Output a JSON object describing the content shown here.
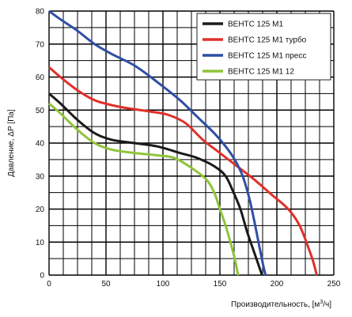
{
  "chart_data": {
    "type": "line",
    "xlabel_base": "Производительность, [м",
    "xlabel_sup": "3",
    "xlabel_end": "/ч]",
    "ylabel": "Давление, ΔР [Па]",
    "xlim": [
      0,
      250
    ],
    "ylim": [
      0,
      80
    ],
    "x_major_ticks": [
      0,
      50,
      100,
      150,
      200,
      250
    ],
    "y_major_ticks": [
      0,
      10,
      20,
      30,
      40,
      50,
      60,
      70,
      80
    ],
    "x_grid_step": 12.5,
    "y_grid_step": 5,
    "grid": true,
    "legend_position": "top-right",
    "series": [
      {
        "name": "ВЕНТС 125 М1",
        "color": "#1a1a1a",
        "points": [
          [
            0,
            55
          ],
          [
            10,
            52
          ],
          [
            25,
            47
          ],
          [
            40,
            43
          ],
          [
            55,
            41
          ],
          [
            75,
            40
          ],
          [
            95,
            39
          ],
          [
            115,
            37
          ],
          [
            130,
            35.5
          ],
          [
            145,
            33
          ],
          [
            155,
            30
          ],
          [
            162,
            25
          ],
          [
            168,
            20
          ],
          [
            174,
            13
          ],
          [
            180,
            7
          ],
          [
            184,
            3
          ],
          [
            187,
            0
          ]
        ]
      },
      {
        "name": "ВЕНТС 125 М1 турбо",
        "color": "#e0302a",
        "points": [
          [
            0,
            63
          ],
          [
            10,
            60
          ],
          [
            25,
            56
          ],
          [
            40,
            53
          ],
          [
            55,
            51.5
          ],
          [
            70,
            50.5
          ],
          [
            90,
            49.5
          ],
          [
            105,
            48.5
          ],
          [
            120,
            46
          ],
          [
            135,
            41
          ],
          [
            150,
            37
          ],
          [
            165,
            33
          ],
          [
            180,
            29
          ],
          [
            195,
            24.5
          ],
          [
            210,
            20
          ],
          [
            220,
            15
          ],
          [
            228,
            8
          ],
          [
            232,
            4
          ],
          [
            235,
            0
          ]
        ]
      },
      {
        "name": "ВЕНТС 125 М1 пресс",
        "color": "#2f4fa4",
        "points": [
          [
            0,
            80
          ],
          [
            10,
            77.5
          ],
          [
            25,
            74
          ],
          [
            40,
            70
          ],
          [
            55,
            67
          ],
          [
            75,
            63.5
          ],
          [
            95,
            58.5
          ],
          [
            115,
            53
          ],
          [
            130,
            48
          ],
          [
            145,
            43
          ],
          [
            155,
            39
          ],
          [
            163,
            35
          ],
          [
            170,
            30
          ],
          [
            176,
            23
          ],
          [
            181,
            15
          ],
          [
            185,
            8
          ],
          [
            188,
            3
          ],
          [
            190,
            0
          ]
        ]
      },
      {
        "name": "ВЕНТС 125 М1 12",
        "color": "#8fc43a",
        "points": [
          [
            0,
            52
          ],
          [
            10,
            49
          ],
          [
            25,
            44
          ],
          [
            40,
            40
          ],
          [
            55,
            38
          ],
          [
            75,
            37
          ],
          [
            95,
            36.3
          ],
          [
            110,
            35.5
          ],
          [
            125,
            32.5
          ],
          [
            138,
            29
          ],
          [
            145,
            25
          ],
          [
            150,
            20
          ],
          [
            155,
            15
          ],
          [
            160,
            9
          ],
          [
            163,
            5
          ],
          [
            166,
            0
          ]
        ]
      }
    ]
  }
}
